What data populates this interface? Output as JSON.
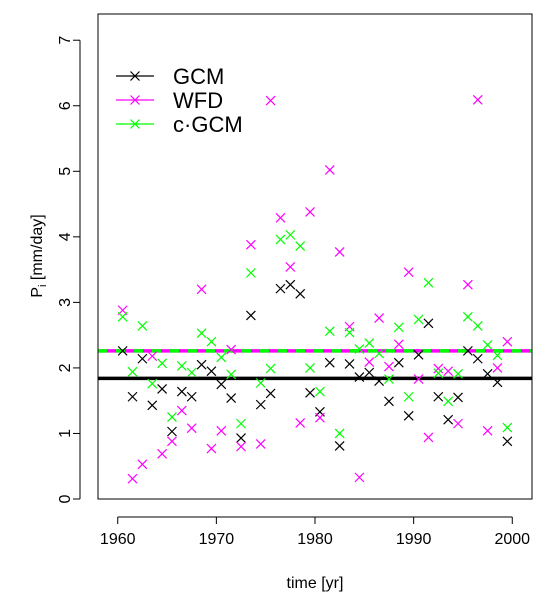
{
  "chart_data": {
    "type": "scatter",
    "xlabel": "time [yr]",
    "ylabel_main": "P",
    "ylabel_sub": "i",
    "ylabel_unit": " [mm/day]",
    "xlim": [
      1958,
      2002
    ],
    "ylim": [
      0,
      7.4
    ],
    "x_ticks": [
      1960,
      1970,
      1980,
      1990,
      2000
    ],
    "y_ticks": [
      0,
      1,
      2,
      3,
      4,
      5,
      6,
      7
    ],
    "grid": false,
    "legend_position": "top-left",
    "series": [
      {
        "name": "GCM",
        "color": "#000000",
        "marker": "x",
        "mean": 1.84,
        "points": [
          [
            1960.5,
            2.26
          ],
          [
            1961.5,
            1.56
          ],
          [
            1962.5,
            2.14
          ],
          [
            1963.5,
            1.43
          ],
          [
            1964.5,
            1.68
          ],
          [
            1965.5,
            1.03
          ],
          [
            1966.5,
            1.64
          ],
          [
            1967.5,
            1.56
          ],
          [
            1968.5,
            2.05
          ],
          [
            1969.5,
            1.95
          ],
          [
            1970.5,
            1.75
          ],
          [
            1971.5,
            1.54
          ],
          [
            1972.5,
            0.93
          ],
          [
            1973.5,
            2.8
          ],
          [
            1974.5,
            1.44
          ],
          [
            1975.5,
            1.61
          ],
          [
            1976.5,
            3.21
          ],
          [
            1977.5,
            3.27
          ],
          [
            1978.5,
            3.13
          ],
          [
            1979.5,
            1.62
          ],
          [
            1980.5,
            1.33
          ],
          [
            1981.5,
            2.08
          ],
          [
            1982.5,
            0.81
          ],
          [
            1983.5,
            2.06
          ],
          [
            1984.5,
            1.86
          ],
          [
            1985.5,
            1.93
          ],
          [
            1986.5,
            1.8
          ],
          [
            1987.5,
            1.49
          ],
          [
            1988.5,
            2.08
          ],
          [
            1989.5,
            1.27
          ],
          [
            1990.5,
            2.2
          ],
          [
            1991.5,
            2.68
          ],
          [
            1992.5,
            1.56
          ],
          [
            1993.5,
            1.21
          ],
          [
            1994.5,
            1.55
          ],
          [
            1995.5,
            2.26
          ],
          [
            1996.5,
            2.14
          ],
          [
            1997.5,
            1.91
          ],
          [
            1998.5,
            1.78
          ],
          [
            1999.5,
            0.88
          ]
        ]
      },
      {
        "name": "WFD",
        "color": "#ff00ff",
        "marker": "x",
        "mean": 2.26,
        "points": [
          [
            1960.5,
            2.88
          ],
          [
            1961.5,
            0.31
          ],
          [
            1962.5,
            0.53
          ],
          [
            1963.5,
            2.18
          ],
          [
            1964.5,
            0.69
          ],
          [
            1965.5,
            0.88
          ],
          [
            1966.5,
            1.35
          ],
          [
            1967.5,
            1.08
          ],
          [
            1968.5,
            3.2
          ],
          [
            1969.5,
            0.77
          ],
          [
            1970.5,
            1.04
          ],
          [
            1971.5,
            2.28
          ],
          [
            1972.5,
            0.8
          ],
          [
            1973.5,
            3.88
          ],
          [
            1974.5,
            0.84
          ],
          [
            1975.5,
            6.08
          ],
          [
            1976.5,
            4.29
          ],
          [
            1977.5,
            3.54
          ],
          [
            1978.5,
            1.16
          ],
          [
            1979.5,
            4.38
          ],
          [
            1980.5,
            1.24
          ],
          [
            1981.5,
            5.02
          ],
          [
            1982.5,
            3.77
          ],
          [
            1983.5,
            2.63
          ],
          [
            1984.5,
            0.33
          ],
          [
            1985.5,
            2.09
          ],
          [
            1986.5,
            2.76
          ],
          [
            1987.5,
            2.02
          ],
          [
            1988.5,
            2.36
          ],
          [
            1989.5,
            3.46
          ],
          [
            1990.5,
            1.83
          ],
          [
            1991.5,
            0.94
          ],
          [
            1992.5,
            1.99
          ],
          [
            1993.5,
            1.95
          ],
          [
            1994.5,
            1.15
          ],
          [
            1995.5,
            3.27
          ],
          [
            1996.5,
            6.09
          ],
          [
            1997.5,
            1.04
          ],
          [
            1998.5,
            2.0
          ],
          [
            1999.5,
            2.4
          ]
        ]
      },
      {
        "name": "c·GCM",
        "color": "#00ff00",
        "marker": "x",
        "mean": 2.26,
        "points": [
          [
            1960.5,
            2.78
          ],
          [
            1961.5,
            1.94
          ],
          [
            1962.5,
            2.64
          ],
          [
            1963.5,
            1.76
          ],
          [
            1964.5,
            2.07
          ],
          [
            1965.5,
            1.25
          ],
          [
            1966.5,
            2.03
          ],
          [
            1967.5,
            1.93
          ],
          [
            1968.5,
            2.53
          ],
          [
            1969.5,
            2.4
          ],
          [
            1970.5,
            2.16
          ],
          [
            1971.5,
            1.9
          ],
          [
            1972.5,
            1.15
          ],
          [
            1973.5,
            3.45
          ],
          [
            1974.5,
            1.77
          ],
          [
            1975.5,
            1.99
          ],
          [
            1976.5,
            3.96
          ],
          [
            1977.5,
            4.03
          ],
          [
            1978.5,
            3.86
          ],
          [
            1979.5,
            2.0
          ],
          [
            1980.5,
            1.64
          ],
          [
            1981.5,
            2.56
          ],
          [
            1982.5,
            1.0
          ],
          [
            1983.5,
            2.54
          ],
          [
            1984.5,
            2.29
          ],
          [
            1985.5,
            2.38
          ],
          [
            1986.5,
            2.22
          ],
          [
            1987.5,
            1.83
          ],
          [
            1988.5,
            2.62
          ],
          [
            1989.5,
            1.56
          ],
          [
            1990.5,
            2.74
          ],
          [
            1991.5,
            3.3
          ],
          [
            1992.5,
            1.92
          ],
          [
            1993.5,
            1.49
          ],
          [
            1994.5,
            1.91
          ],
          [
            1995.5,
            2.78
          ],
          [
            1996.5,
            2.64
          ],
          [
            1997.5,
            2.35
          ],
          [
            1998.5,
            2.19
          ],
          [
            1999.5,
            1.09
          ]
        ]
      }
    ]
  }
}
